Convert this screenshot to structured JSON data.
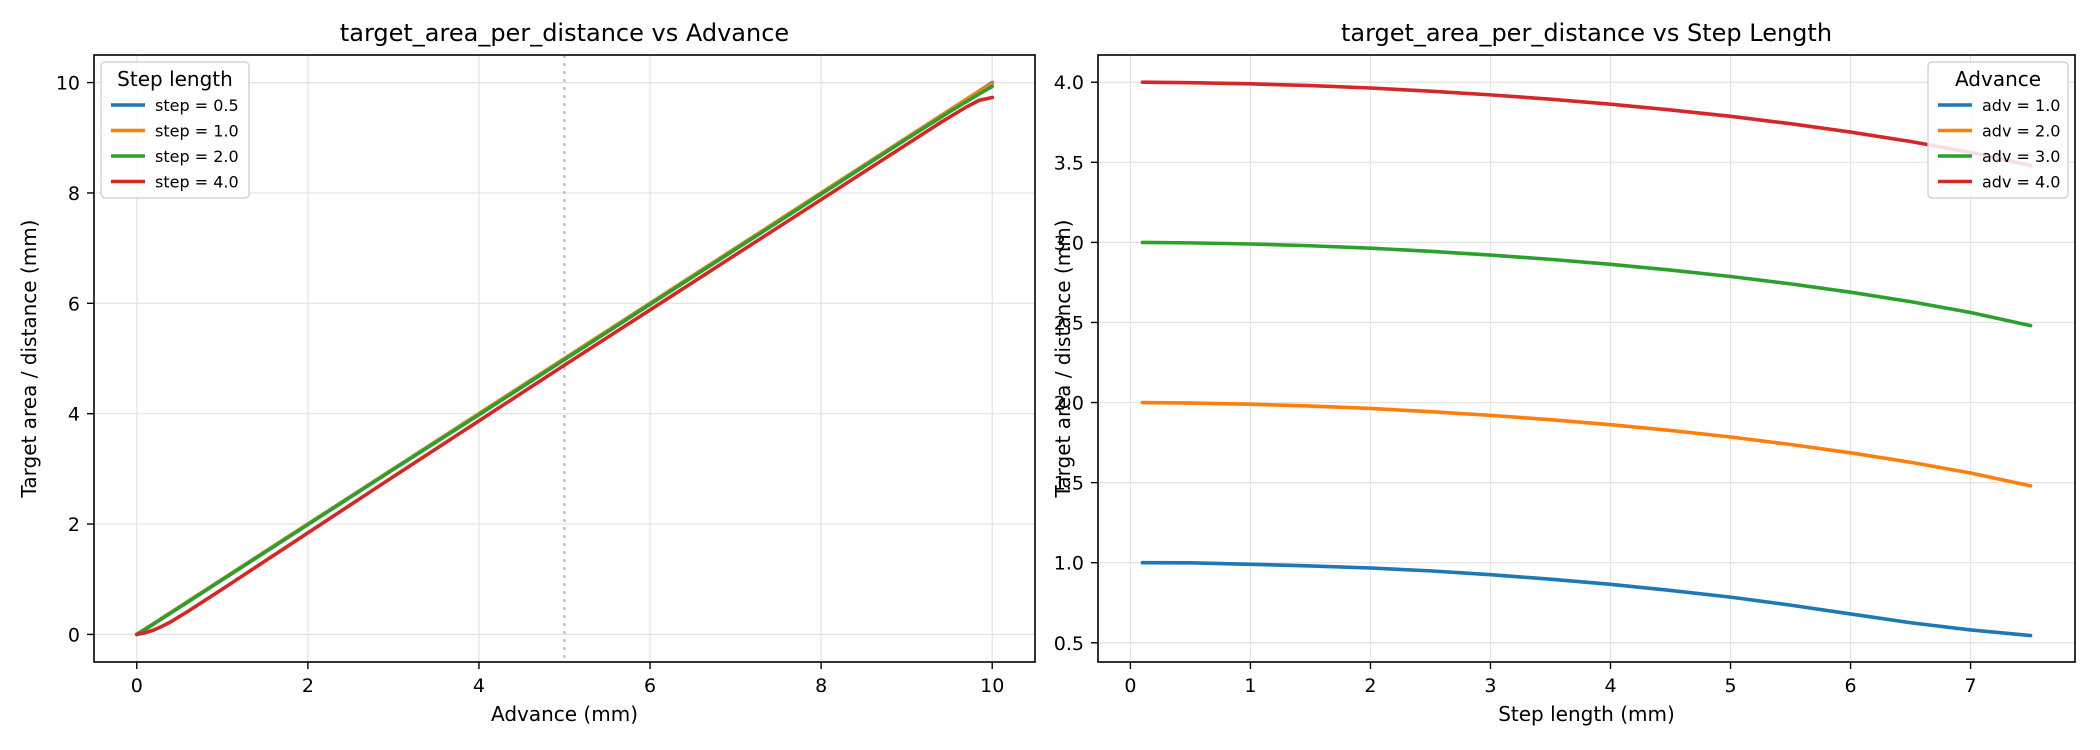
{
  "chart_data": [
    {
      "type": "line",
      "title": "target_area_per_distance vs Advance",
      "xlabel": "Advance (mm)",
      "ylabel": "Target area / distance (mm)",
      "xlim": [
        -0.5,
        10.5
      ],
      "ylim": [
        -0.5,
        10.5
      ],
      "xticks": [
        0,
        2,
        4,
        6,
        8,
        10
      ],
      "yticks": [
        0,
        2,
        4,
        6,
        8,
        10
      ],
      "grid": true,
      "reference_line": {
        "x": 5,
        "style": "dotted",
        "color": "#bdbdbd"
      },
      "legend": {
        "title": "Step length",
        "placement": "top-left"
      },
      "series": [
        {
          "name": "step = 0.5",
          "color": "#1f77b4",
          "x": [
            0,
            0.1,
            0.2,
            0.4,
            0.7,
            1,
            2,
            3,
            4,
            5,
            6,
            7,
            8,
            9,
            9.5,
            9.8,
            10
          ],
          "y": [
            0,
            0.1,
            0.2,
            0.4,
            0.7,
            1,
            2,
            3,
            4,
            5,
            6,
            7,
            8,
            9,
            9.5,
            9.8,
            10
          ]
        },
        {
          "name": "step = 1.0",
          "color": "#ff7f0e",
          "x": [
            0,
            0.1,
            0.2,
            0.4,
            0.7,
            1,
            2,
            3,
            4,
            5,
            6,
            7,
            8,
            9,
            9.5,
            9.8,
            10
          ],
          "y": [
            0,
            0.1,
            0.2,
            0.4,
            0.7,
            1,
            2,
            3,
            4,
            5,
            6,
            7,
            8,
            9,
            9.5,
            9.8,
            9.98
          ]
        },
        {
          "name": "step = 2.0",
          "color": "#2ca02c",
          "x": [
            0,
            0.1,
            0.2,
            0.4,
            0.7,
            1,
            2,
            3,
            4,
            5,
            6,
            7,
            8,
            9,
            9.5,
            9.8,
            10
          ],
          "y": [
            0,
            0.09,
            0.19,
            0.39,
            0.69,
            0.99,
            1.99,
            2.99,
            3.98,
            4.98,
            5.98,
            6.98,
            7.98,
            8.98,
            9.47,
            9.75,
            9.93
          ]
        },
        {
          "name": "step = 4.0",
          "color": "#d62728",
          "x": [
            0,
            0.1,
            0.2,
            0.3,
            0.4,
            0.6,
            0.8,
            1,
            2,
            3,
            4,
            5,
            6,
            7,
            8,
            9,
            9.4,
            9.7,
            9.85,
            10
          ],
          "y": [
            0,
            0.03,
            0.08,
            0.15,
            0.23,
            0.42,
            0.62,
            0.82,
            1.84,
            2.86,
            3.87,
            4.88,
            5.88,
            6.88,
            7.88,
            8.88,
            9.28,
            9.56,
            9.68,
            9.73
          ]
        }
      ]
    },
    {
      "type": "line",
      "title": "target_area_per_distance vs Step Length",
      "xlabel": "Step length (mm)",
      "ylabel": "Target area / distance (mm)",
      "xlim": [
        -0.27,
        7.87
      ],
      "ylim": [
        0.38,
        4.17
      ],
      "xticks": [
        0,
        1,
        2,
        3,
        4,
        5,
        6,
        7
      ],
      "yticks": [
        0.5,
        1.0,
        1.5,
        2.0,
        2.5,
        3.0,
        3.5,
        4.0
      ],
      "grid": true,
      "legend": {
        "title": "Advance",
        "placement": "top-right"
      },
      "series": [
        {
          "name": "adv = 1.0",
          "color": "#1f77b4",
          "x": [
            0.1,
            0.5,
            1,
            1.5,
            2,
            2.5,
            3,
            3.5,
            4,
            4.5,
            5,
            5.5,
            6,
            6.5,
            7,
            7.5
          ],
          "y": [
            1.0,
            0.999,
            0.99,
            0.98,
            0.967,
            0.949,
            0.925,
            0.897,
            0.865,
            0.827,
            0.785,
            0.735,
            0.68,
            0.625,
            0.58,
            0.545
          ]
        },
        {
          "name": "adv = 2.0",
          "color": "#ff7f0e",
          "x": [
            0.1,
            0.5,
            1,
            1.5,
            2,
            2.5,
            3,
            3.5,
            4,
            4.5,
            5,
            5.5,
            6,
            6.5,
            7,
            7.5
          ],
          "y": [
            2.0,
            1.997,
            1.99,
            1.978,
            1.963,
            1.943,
            1.92,
            1.893,
            1.862,
            1.826,
            1.785,
            1.738,
            1.686,
            1.627,
            1.56,
            1.48
          ]
        },
        {
          "name": "adv = 3.0",
          "color": "#2ca02c",
          "x": [
            0.1,
            0.5,
            1,
            1.5,
            2,
            2.5,
            3,
            3.5,
            4,
            4.5,
            5,
            5.5,
            6,
            6.5,
            7,
            7.5
          ],
          "y": [
            3.0,
            2.997,
            2.99,
            2.979,
            2.964,
            2.944,
            2.921,
            2.894,
            2.863,
            2.827,
            2.787,
            2.741,
            2.689,
            2.63,
            2.562,
            2.48
          ]
        },
        {
          "name": "adv = 4.0",
          "color": "#d62728",
          "x": [
            0.1,
            0.5,
            1,
            1.5,
            2,
            2.5,
            3,
            3.5,
            4,
            4.5,
            5,
            5.5,
            6,
            6.5,
            7,
            7.5
          ],
          "y": [
            4.0,
            3.997,
            3.99,
            3.979,
            3.964,
            3.944,
            3.921,
            3.894,
            3.863,
            3.827,
            3.787,
            3.741,
            3.689,
            3.63,
            3.562,
            3.48
          ]
        }
      ]
    }
  ]
}
